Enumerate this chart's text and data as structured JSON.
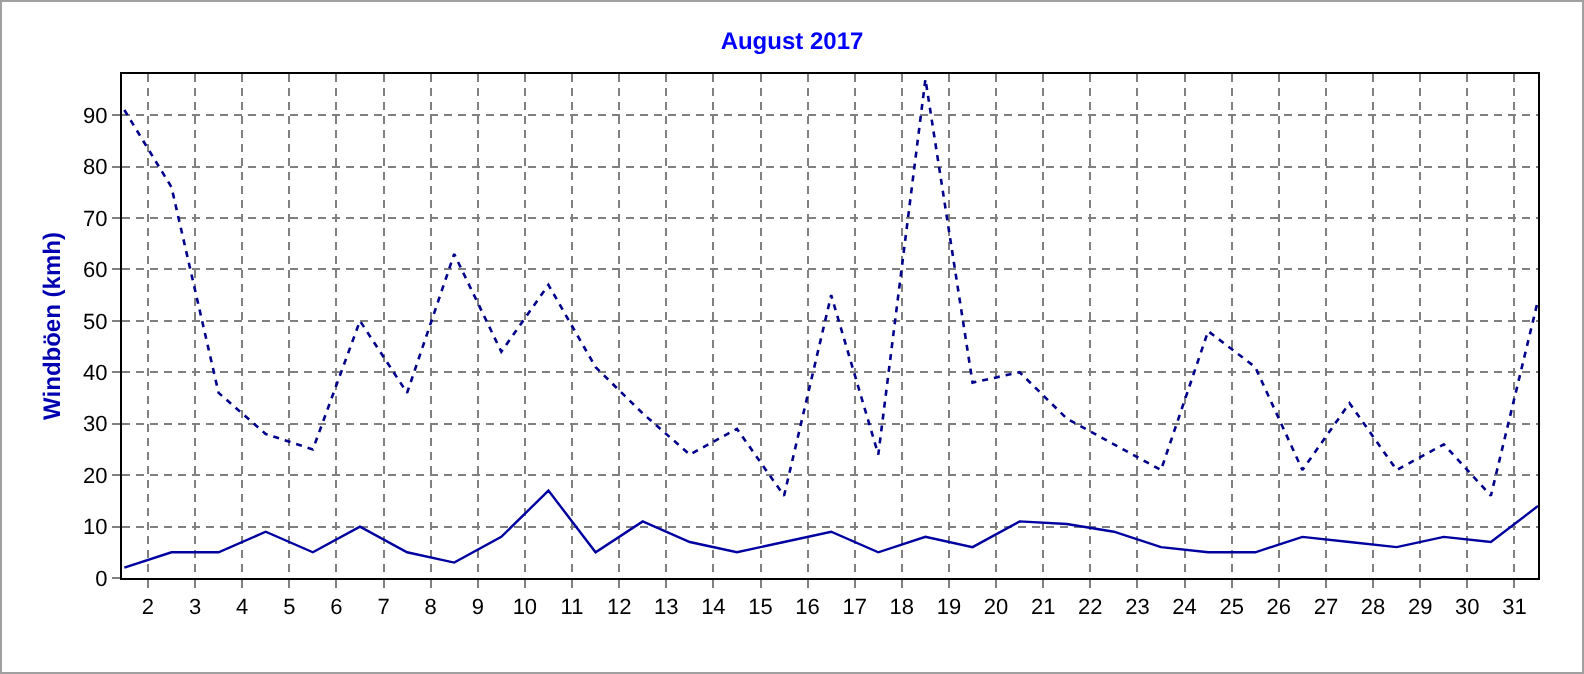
{
  "chart_data": {
    "type": "line",
    "title": "August 2017",
    "ylabel": "Windböen (kmh)",
    "x": [
      1.5,
      2.5,
      3.5,
      4.5,
      5.5,
      6.5,
      7.5,
      8.5,
      9.5,
      10.5,
      11.5,
      12.5,
      13.5,
      14.5,
      15.5,
      16.5,
      17.5,
      18.5,
      19.5,
      20.5,
      21.5,
      22.5,
      23.5,
      24.5,
      25.5,
      26.5,
      27.5,
      28.5,
      29.5,
      30.5,
      31.5
    ],
    "series": [
      {
        "color": "#00008b",
        "line_style": "dotted",
        "values": [
          91,
          76,
          36,
          28,
          25,
          50,
          36,
          63,
          44,
          57,
          41,
          32,
          24,
          29,
          16,
          55,
          24,
          97,
          38,
          40,
          31,
          26,
          21,
          48,
          41,
          21,
          34,
          21,
          26,
          16,
          54
        ]
      },
      {
        "color": "#0000a0",
        "line_style": "solid",
        "values": [
          2,
          5,
          5,
          9,
          5,
          10,
          5,
          3,
          8,
          17,
          5,
          11,
          7,
          5,
          7,
          9,
          5,
          8,
          6,
          11,
          10.5,
          9,
          6,
          5,
          5,
          8,
          7,
          6,
          8,
          7,
          14
        ]
      }
    ],
    "xlim": [
      1.45,
      31.5
    ],
    "xticks": [
      2,
      3,
      4,
      5,
      6,
      7,
      8,
      9,
      10,
      11,
      12,
      13,
      14,
      15,
      16,
      17,
      18,
      19,
      20,
      21,
      22,
      23,
      24,
      25,
      26,
      27,
      28,
      29,
      30,
      31
    ],
    "ylim": [
      0,
      98
    ],
    "yticks": [
      0,
      10,
      20,
      30,
      40,
      50,
      60,
      70,
      80,
      90
    ],
    "grid": true,
    "marker": "none"
  }
}
